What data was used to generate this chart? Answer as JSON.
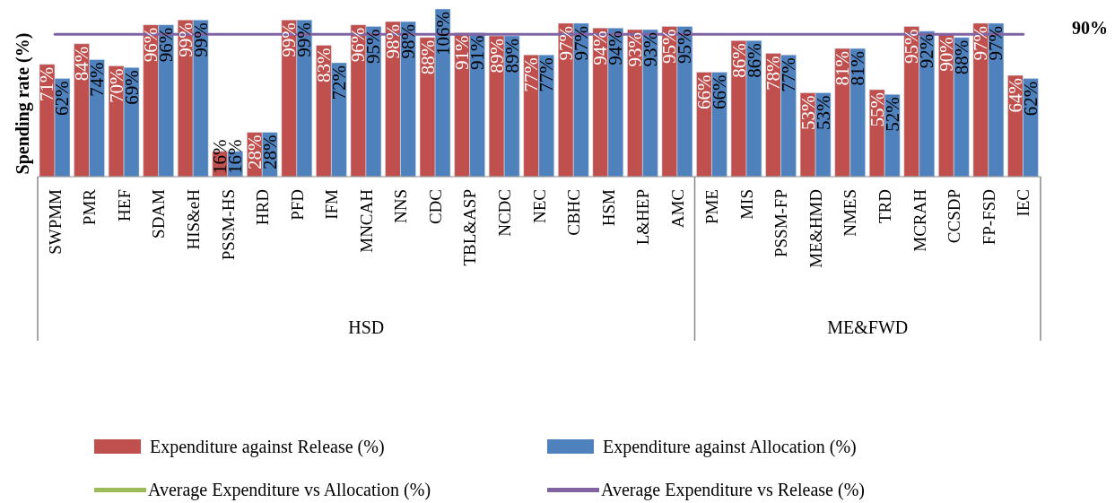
{
  "chart_data": {
    "type": "bar",
    "ylabel": "Spending rate (%)",
    "categories": [
      "SWPMM",
      "PMR",
      "HEF",
      "SDAM",
      "HIS&eH",
      "PSSM-HS",
      "HRD",
      "PFD",
      "IFM",
      "MNCAH",
      "NNS",
      "CDC",
      "TBL&ASP",
      "NCDC",
      "NEC",
      "CBHC",
      "HSM",
      "L&HEP",
      "AMC",
      "PME",
      "MIS",
      "PSSM-FP",
      "ME&HMD",
      "NMES",
      "TRD",
      "MCRAH",
      "CCSDP",
      "FP-FSD",
      "IEC"
    ],
    "series": [
      {
        "name": "Expenditure against Release (%)",
        "color": "#c0504d",
        "values": [
          71,
          84,
          70,
          96,
          99,
          16,
          28,
          99,
          83,
          96,
          98,
          88,
          91,
          89,
          77,
          97,
          94,
          93,
          95,
          66,
          86,
          78,
          53,
          81,
          55,
          95,
          90,
          97,
          64
        ],
        "value_labels": [
          "71%",
          "84%",
          "70%",
          "96%",
          "99%",
          "16%",
          "28%",
          "99%",
          "83%",
          "96%",
          "98%",
          "88%",
          "91%",
          "89%",
          "77%",
          "97%",
          "94%",
          "93%",
          "95%",
          "66%",
          "86%",
          "78%",
          "53%",
          "81%",
          "55%",
          "95%",
          "90%",
          "97%",
          "64%"
        ]
      },
      {
        "name": "Expenditure against Allocation (%)",
        "color": "#4f81bd",
        "values": [
          62,
          74,
          69,
          96,
          99,
          16,
          28,
          99,
          72,
          95,
          98,
          106,
          91,
          89,
          77,
          97,
          94,
          93,
          95,
          66,
          86,
          77,
          53,
          81,
          52,
          92,
          88,
          97,
          62
        ],
        "value_labels": [
          "62%",
          "74%",
          "69%",
          "96%",
          "99%",
          "16%",
          "28%",
          "99%",
          "72%",
          "95%",
          "98%",
          "106%",
          "91%",
          "89%",
          "77%",
          "97%",
          "94%",
          "93%",
          "95%",
          "66%",
          "86%",
          "77%",
          "53%",
          "81%",
          "52%",
          "92%",
          "88%",
          "97%",
          "62%"
        ]
      },
      {
        "name": "Average Expenditure vs Allocation (%)",
        "type": "line",
        "color": "#9bbb59",
        "values": [
          null,
          null,
          null,
          null,
          null,
          null,
          null,
          null,
          null,
          null,
          null,
          null,
          null,
          null,
          null,
          null,
          null,
          null,
          null,
          null,
          null,
          null,
          null,
          null,
          null,
          null,
          null,
          null,
          null
        ]
      },
      {
        "name": "Average Expenditure vs Release (%)",
        "type": "line",
        "color": "#8064a2",
        "values": [
          90,
          90,
          90,
          90,
          90,
          90,
          90,
          90,
          90,
          90,
          90,
          90,
          90,
          90,
          90,
          90,
          90,
          90,
          90,
          90,
          90,
          90,
          90,
          90,
          90,
          90,
          90,
          90,
          90
        ]
      }
    ],
    "marker": "none",
    "legend": "bottom",
    "annotations": [
      "HSD",
      "ME&FWD",
      "90%"
    ]
  }
}
